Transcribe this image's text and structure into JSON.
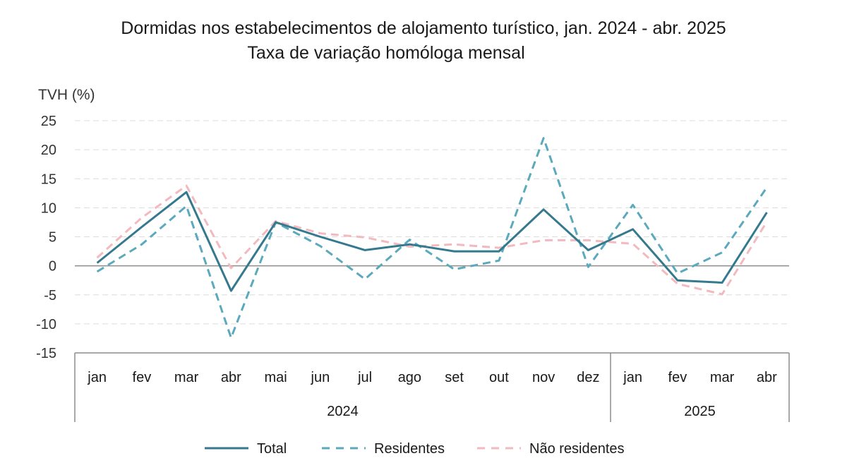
{
  "chart_data": {
    "type": "line",
    "title": "Dormidas nos estabelecimentos de alojamento turístico, jan. 2024 - abr. 2025",
    "subtitle": "Taxa de variação homóloga mensal",
    "ylabel": "TVH (%)",
    "ylim": [
      -15,
      25
    ],
    "yticks": [
      25,
      20,
      15,
      10,
      5,
      0,
      -5,
      -10,
      -15
    ],
    "grid": true,
    "categories": [
      "jan",
      "fev",
      "mar",
      "abr",
      "mai",
      "jun",
      "jul",
      "ago",
      "set",
      "out",
      "nov",
      "dez",
      "jan",
      "fev",
      "mar",
      "abr"
    ],
    "year_groups": [
      {
        "label": "2024",
        "count": 12
      },
      {
        "label": "2025",
        "count": 4
      }
    ],
    "legend_position": "bottom",
    "series": [
      {
        "name": "Total",
        "color": "#35798e",
        "style": "solid",
        "values": [
          0.5,
          6.7,
          12.7,
          -4.3,
          7.5,
          5.0,
          2.7,
          3.7,
          2.5,
          2.5,
          9.7,
          2.7,
          6.3,
          -2.5,
          -2.9,
          9.2
        ]
      },
      {
        "name": "Residentes",
        "color": "#5ba9bc",
        "style": "dashed",
        "values": [
          -1.0,
          3.7,
          10.3,
          -12.4,
          7.5,
          3.4,
          -2.3,
          4.5,
          -0.6,
          0.9,
          22.0,
          -0.2,
          10.5,
          -1.3,
          2.3,
          13.5
        ]
      },
      {
        "name": "Não residentes",
        "color": "#f2b9bf",
        "style": "dashed",
        "values": [
          1.4,
          8.3,
          13.8,
          -0.4,
          7.7,
          5.6,
          4.9,
          3.3,
          3.7,
          3.1,
          4.4,
          4.4,
          3.8,
          -3.1,
          -4.9,
          7.6
        ]
      }
    ]
  }
}
